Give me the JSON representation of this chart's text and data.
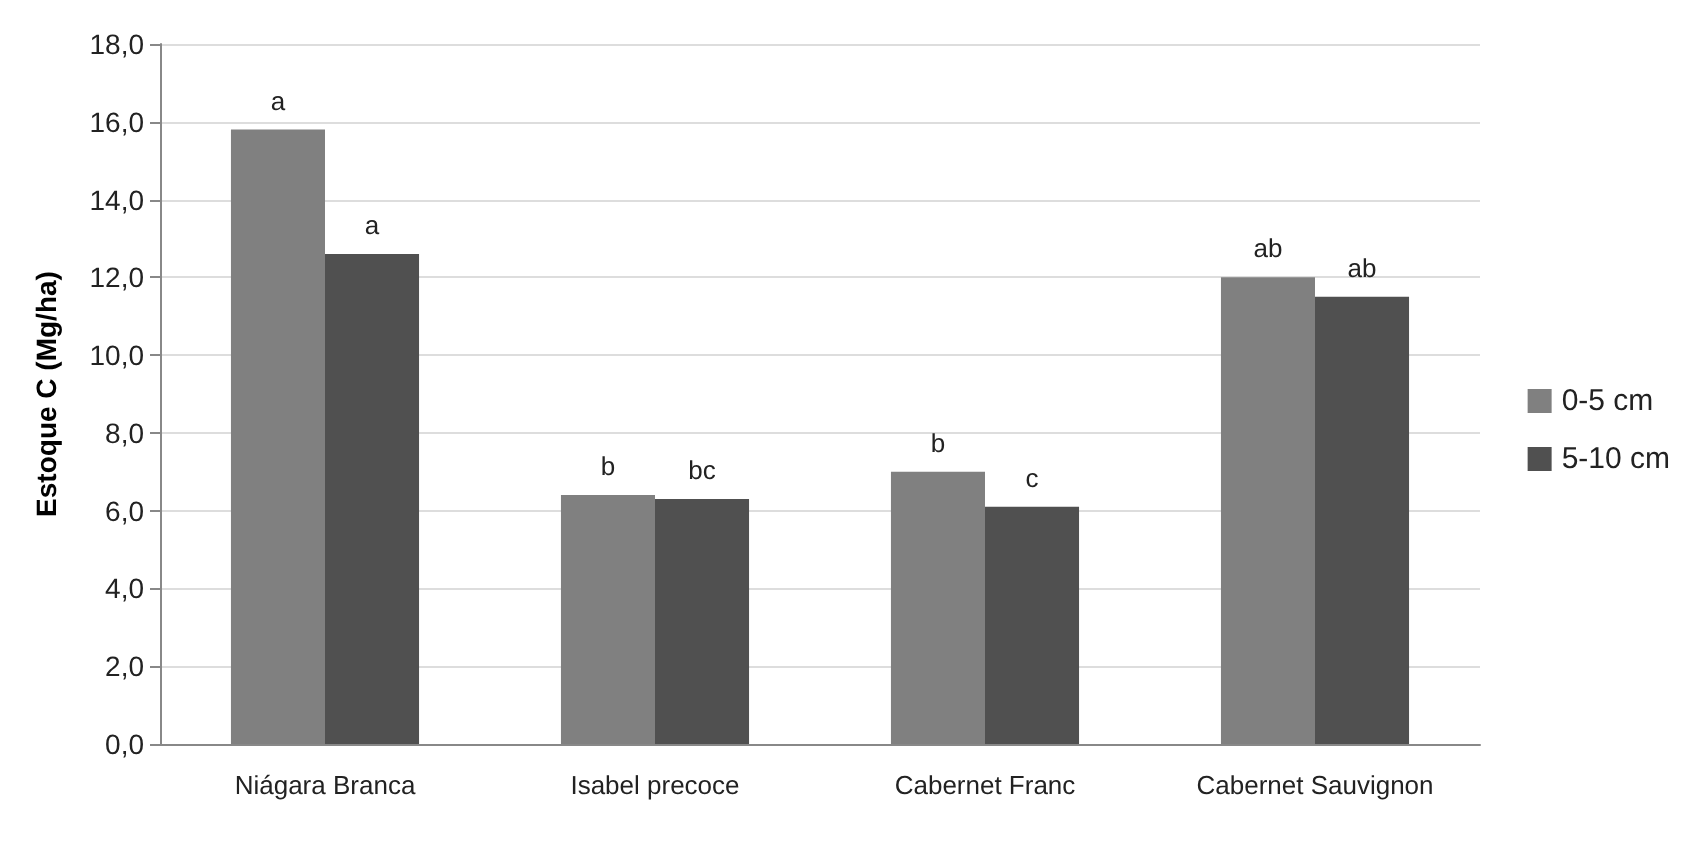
{
  "chart_data": {
    "type": "bar",
    "ylabel": "Estoque C (Mg/ha)",
    "categories": [
      "Niágara Branca",
      "Isabel precoce",
      "Cabernet Franc",
      "Cabernet Sauvignon"
    ],
    "series": [
      {
        "name": "0-5 cm",
        "color": "#808080",
        "values": [
          15.8,
          6.4,
          7.0,
          12.0
        ],
        "value_labels": [
          "a",
          "b",
          "b",
          "ab"
        ]
      },
      {
        "name": "5-10 cm",
        "color": "#505050",
        "values": [
          12.6,
          6.3,
          6.1,
          11.5
        ],
        "value_labels": [
          "a",
          "bc",
          "c",
          "ab"
        ]
      }
    ],
    "ylim": [
      0,
      18
    ],
    "yticks": [
      {
        "value": 0,
        "label": "0,0"
      },
      {
        "value": 2,
        "label": "2,0"
      },
      {
        "value": 4,
        "label": "4,0"
      },
      {
        "value": 6,
        "label": "6,0"
      },
      {
        "value": 8,
        "label": "8,0"
      },
      {
        "value": 10,
        "label": "10,0"
      },
      {
        "value": 12,
        "label": "12,0"
      },
      {
        "value": 14,
        "label": "14,0"
      },
      {
        "value": 16,
        "label": "16,0"
      },
      {
        "value": 18,
        "label": "18,0"
      }
    ],
    "grid": true,
    "legend": "right"
  }
}
